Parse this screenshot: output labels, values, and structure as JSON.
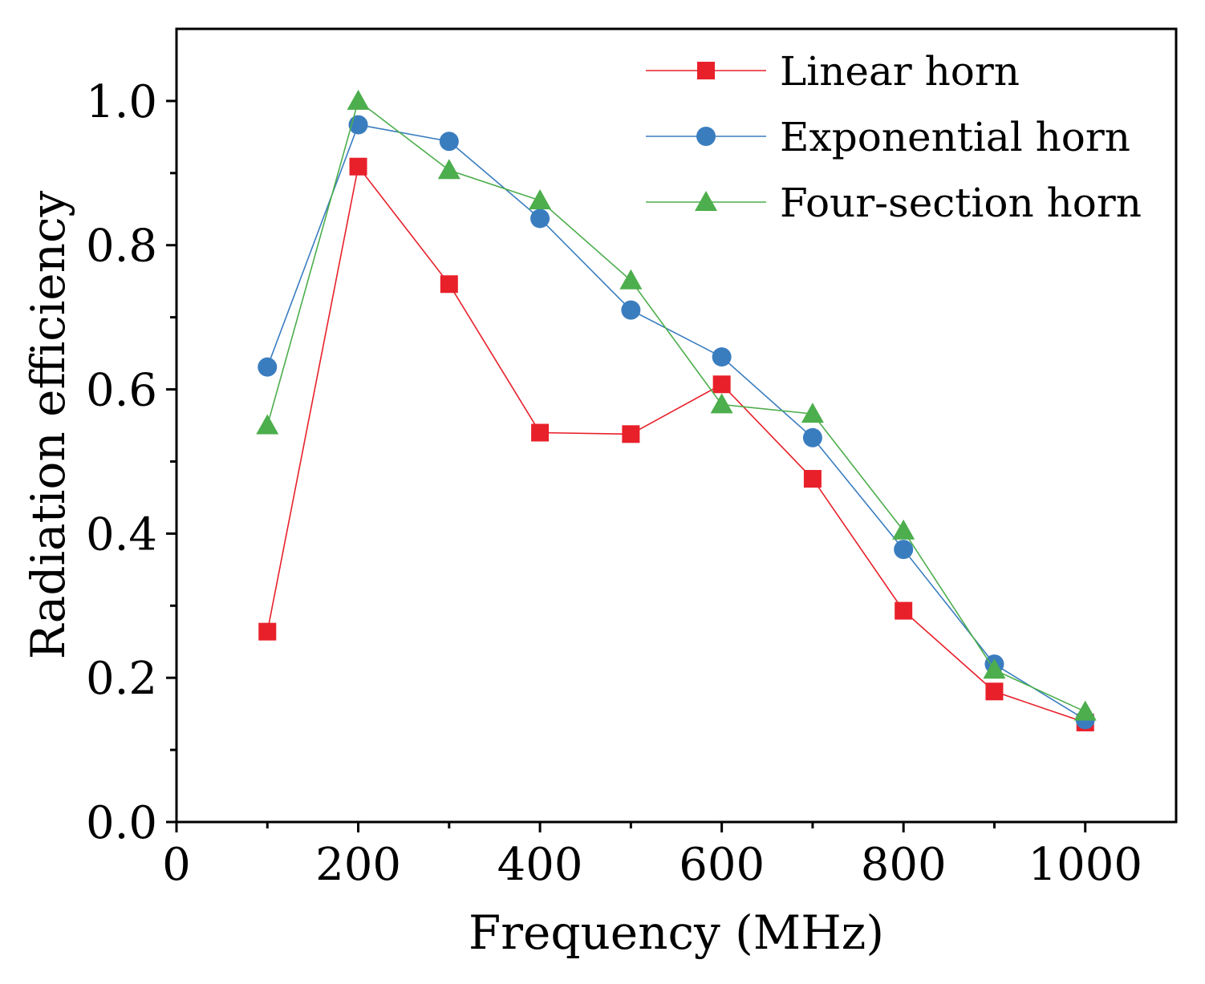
{
  "chart_data": {
    "type": "line",
    "title": "",
    "xlabel": "Frequency (MHz)",
    "ylabel": "Radiation efficiency",
    "xlim": [
      0,
      1100
    ],
    "ylim": [
      0,
      1.1
    ],
    "xticks": [
      0,
      200,
      400,
      600,
      800,
      1000
    ],
    "xtick_labels": [
      "0",
      "200",
      "400",
      "600",
      "800",
      "1000"
    ],
    "xminor": [
      100,
      300,
      500,
      700,
      900
    ],
    "yticks": [
      0.0,
      0.2,
      0.4,
      0.6,
      0.8,
      1.0
    ],
    "ytick_labels": [
      "0.0",
      "0.2",
      "0.4",
      "0.6",
      "0.8",
      "1.0"
    ],
    "yminor": [
      0.1,
      0.3,
      0.5,
      0.7,
      0.9
    ],
    "grid": false,
    "legend_position": "top-right",
    "x": [
      100,
      200,
      300,
      400,
      500,
      600,
      700,
      800,
      900,
      1000
    ],
    "series": [
      {
        "name": "Linear horn",
        "marker": "square",
        "color": "#e8202a",
        "values": [
          0.264,
          0.909,
          0.746,
          0.54,
          0.538,
          0.607,
          0.476,
          0.293,
          0.181,
          0.138
        ]
      },
      {
        "name": "Exponential horn",
        "marker": "circle",
        "color": "#3a7dbf",
        "values": [
          0.631,
          0.967,
          0.944,
          0.837,
          0.71,
          0.645,
          0.533,
          0.378,
          0.219,
          0.142
        ]
      },
      {
        "name": "Four-section horn",
        "marker": "triangle",
        "color": "#4cae4c",
        "values": [
          0.55,
          1.0,
          0.904,
          0.862,
          0.751,
          0.579,
          0.566,
          0.404,
          0.211,
          0.153
        ]
      }
    ]
  }
}
